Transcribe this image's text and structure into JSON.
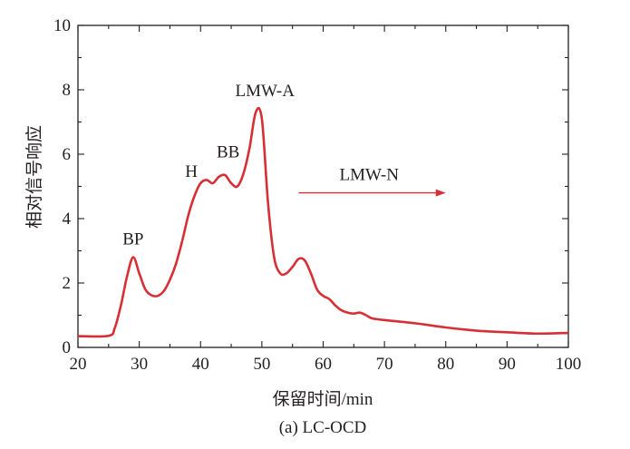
{
  "chart_data": {
    "type": "line",
    "xlabel": "保留时间/min",
    "ylabel": "相对信号响应",
    "caption": "(a) LC-OCD",
    "xlim": [
      20,
      100
    ],
    "ylim": [
      0,
      10
    ],
    "xticks": [
      20,
      30,
      40,
      50,
      60,
      70,
      80,
      90,
      100
    ],
    "yticks": [
      0,
      2,
      4,
      6,
      8,
      10
    ],
    "grid": false,
    "series_color": "#d62f36",
    "annotations": [
      {
        "text": "BP",
        "x": 29,
        "y": 3.2
      },
      {
        "text": "H",
        "x": 38.5,
        "y": 5.3
      },
      {
        "text": "BB",
        "x": 44.5,
        "y": 5.9
      },
      {
        "text": "LMW-A",
        "x": 50.5,
        "y": 7.8
      },
      {
        "text": "LMW-N",
        "x": 67.5,
        "y": 5.2
      }
    ],
    "arrow": {
      "x_start": 56,
      "x_end": 80,
      "y": 4.8
    },
    "series": [
      {
        "x": [
          20,
          25,
          26,
          27,
          28,
          29,
          30,
          31,
          32,
          33,
          34,
          35,
          36,
          37,
          38,
          39,
          40,
          41,
          42,
          43,
          44,
          45,
          46,
          47,
          48,
          49,
          50,
          51,
          52,
          53,
          54,
          55,
          56,
          57,
          58,
          59,
          60,
          61,
          62,
          63,
          64,
          65,
          66,
          67,
          68,
          70,
          75,
          80,
          85,
          90,
          95,
          100
        ],
        "y": [
          0.35,
          0.36,
          0.6,
          1.3,
          2.2,
          2.8,
          2.3,
          1.8,
          1.62,
          1.6,
          1.75,
          2.1,
          2.6,
          3.3,
          4.1,
          4.7,
          5.1,
          5.2,
          5.1,
          5.3,
          5.35,
          5.1,
          5.0,
          5.4,
          6.2,
          7.3,
          7.1,
          4.5,
          2.8,
          2.3,
          2.3,
          2.5,
          2.75,
          2.7,
          2.3,
          1.8,
          1.6,
          1.5,
          1.3,
          1.15,
          1.08,
          1.05,
          1.08,
          1.0,
          0.9,
          0.85,
          0.75,
          0.62,
          0.52,
          0.47,
          0.43,
          0.45
        ]
      }
    ]
  }
}
